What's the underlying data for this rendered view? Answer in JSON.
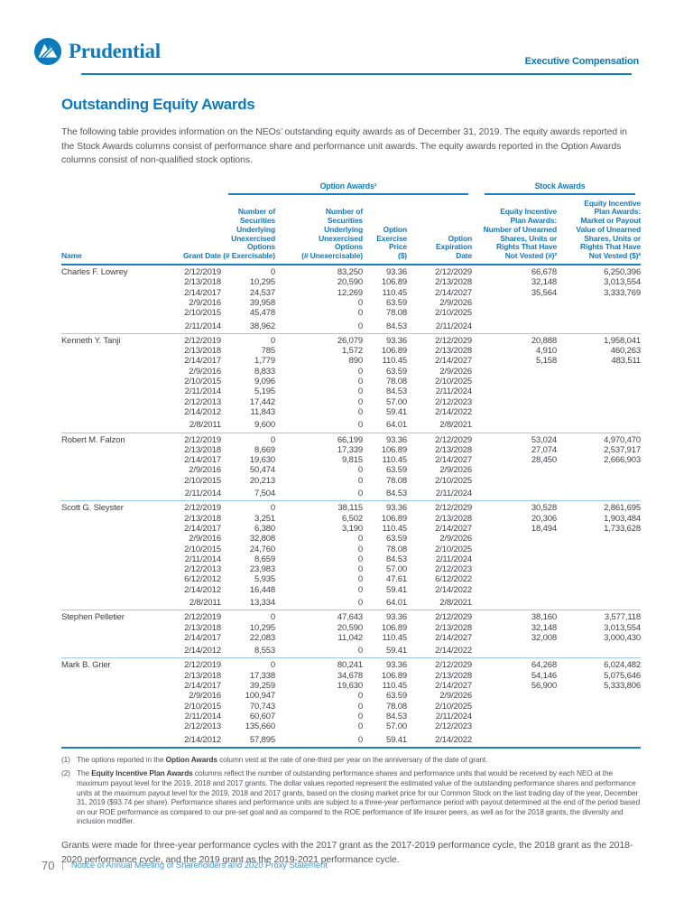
{
  "colors": {
    "brand_blue": "#0b7bbf",
    "rule_blue": "#1a80c4",
    "light_rule_blue": "#9ecbe9",
    "body_text": "#55565a",
    "footer_blue": "#4796cf"
  },
  "header": {
    "brand": "Prudential",
    "logo_icon": "rock-of-gibraltar-icon",
    "section": "Executive Compensation"
  },
  "title": "Outstanding Equity Awards",
  "intro": "The following table provides information on the NEOs’ outstanding equity awards as of December 31, 2019. The equity awards reported in the Stock Awards columns consist of performance share and performance unit awards. The equity awards reported in the Option Awards columns consist of non-qualified stock options.",
  "table": {
    "group_option": "Option Awards¹",
    "group_stock": "Stock Awards",
    "columns": [
      "Name",
      "Grant Date",
      "Number of\nSecurities\nUnderlying\nUnexercised\nOptions\n(# Exercisable)",
      "Number of\nSecurities\nUnderlying\nUnexercised\nOptions\n(# Unexercisable)",
      "Option\nExercise\nPrice\n($)",
      "Option\nExpiration\nDate",
      "Equity Incentive\nPlan Awards:\nNumber of Unearned\nShares, Units or\nRights That Have\nNot Vested (#)²",
      "Equity Incentive\nPlan Awards:\nMarket or Payout\nValue of Unearned\nShares, Units or\nRights That Have\nNot Vested ($)²"
    ],
    "groups": [
      {
        "name": "Charles F. Lowrey",
        "rows": [
          [
            "2/12/2019",
            "0",
            "83,250",
            "93.36",
            "2/12/2029",
            "66,678",
            "6,250,396"
          ],
          [
            "2/13/2018",
            "10,295",
            "20,590",
            "106.89",
            "2/13/2028",
            "32,148",
            "3,013,554"
          ],
          [
            "2/14/2017",
            "24,537",
            "12,269",
            "110.45",
            "2/14/2027",
            "35,564",
            "3,333,769"
          ],
          [
            "2/9/2016",
            "39,958",
            "0",
            "63.59",
            "2/9/2026",
            "",
            ""
          ],
          [
            "2/10/2015",
            "45,478",
            "0",
            "78.08",
            "2/10/2025",
            "",
            ""
          ],
          [
            "2/11/2014",
            "38,962",
            "0",
            "84.53",
            "2/11/2024",
            "",
            ""
          ]
        ]
      },
      {
        "name": "Kenneth Y. Tanji",
        "rows": [
          [
            "2/12/2019",
            "0",
            "26,079",
            "93.36",
            "2/12/2029",
            "20,888",
            "1,958,041"
          ],
          [
            "2/13/2018",
            "785",
            "1,572",
            "106.89",
            "2/13/2028",
            "4,910",
            "460,263"
          ],
          [
            "2/14/2017",
            "1,779",
            "890",
            "110.45",
            "2/14/2027",
            "5,158",
            "483,511"
          ],
          [
            "2/9/2016",
            "8,833",
            "0",
            "63.59",
            "2/9/2026",
            "",
            ""
          ],
          [
            "2/10/2015",
            "9,096",
            "0",
            "78.08",
            "2/10/2025",
            "",
            ""
          ],
          [
            "2/11/2014",
            "5,195",
            "0",
            "84.53",
            "2/11/2024",
            "",
            ""
          ],
          [
            "2/12/2013",
            "17,442",
            "0",
            "57.00",
            "2/12/2023",
            "",
            ""
          ],
          [
            "2/14/2012",
            "11,843",
            "0",
            "59.41",
            "2/14/2022",
            "",
            ""
          ],
          [
            "2/8/2011",
            "9,600",
            "0",
            "64.01",
            "2/8/2021",
            "",
            ""
          ]
        ]
      },
      {
        "name": "Robert M. Falzon",
        "rows": [
          [
            "2/12/2019",
            "0",
            "66,199",
            "93.36",
            "2/12/2029",
            "53,024",
            "4,970,470"
          ],
          [
            "2/13/2018",
            "8,669",
            "17,339",
            "106.89",
            "2/13/2028",
            "27,074",
            "2,537,917"
          ],
          [
            "2/14/2017",
            "19,630",
            "9,815",
            "110.45",
            "2/14/2027",
            "28,450",
            "2,666,903"
          ],
          [
            "2/9/2016",
            "50,474",
            "0",
            "63.59",
            "2/9/2026",
            "",
            ""
          ],
          [
            "2/10/2015",
            "20,213",
            "0",
            "78.08",
            "2/10/2025",
            "",
            ""
          ],
          [
            "2/11/2014",
            "7,504",
            "0",
            "84.53",
            "2/11/2024",
            "",
            ""
          ]
        ]
      },
      {
        "name": "Scott G. Sleyster",
        "rows": [
          [
            "2/12/2019",
            "0",
            "38,115",
            "93.36",
            "2/12/2029",
            "30,528",
            "2,861,695"
          ],
          [
            "2/13/2018",
            "3,251",
            "6,502",
            "106.89",
            "2/13/2028",
            "20,306",
            "1,903,484"
          ],
          [
            "2/14/2017",
            "6,380",
            "3,190",
            "110.45",
            "2/14/2027",
            "18,494",
            "1,733,628"
          ],
          [
            "2/9/2016",
            "32,808",
            "0",
            "63.59",
            "2/9/2026",
            "",
            ""
          ],
          [
            "2/10/2015",
            "24,760",
            "0",
            "78.08",
            "2/10/2025",
            "",
            ""
          ],
          [
            "2/11/2014",
            "8,659",
            "0",
            "84.53",
            "2/11/2024",
            "",
            ""
          ],
          [
            "2/12/2013",
            "23,983",
            "0",
            "57.00",
            "2/12/2023",
            "",
            ""
          ],
          [
            "6/12/2012",
            "5,935",
            "0",
            "47.61",
            "6/12/2022",
            "",
            ""
          ],
          [
            "2/14/2012",
            "16,448",
            "0",
            "59.41",
            "2/14/2022",
            "",
            ""
          ],
          [
            "2/8/2011",
            "13,334",
            "0",
            "64.01",
            "2/8/2021",
            "",
            ""
          ]
        ]
      },
      {
        "name": "Stephen Pelletier",
        "rows": [
          [
            "2/12/2019",
            "0",
            "47,643",
            "93.36",
            "2/12/2029",
            "38,160",
            "3,577,118"
          ],
          [
            "2/13/2018",
            "10,295",
            "20,590",
            "106.89",
            "2/13/2028",
            "32,148",
            "3,013,554"
          ],
          [
            "2/14/2017",
            "22,083",
            "11,042",
            "110.45",
            "2/14/2027",
            "32,008",
            "3,000,430"
          ],
          [
            "2/14/2012",
            "8,553",
            "0",
            "59.41",
            "2/14/2022",
            "",
            ""
          ]
        ]
      },
      {
        "name": "Mark B. Grier",
        "rows": [
          [
            "2/12/2019",
            "0",
            "80,241",
            "93.36",
            "2/12/2029",
            "64,268",
            "6,024,482"
          ],
          [
            "2/13/2018",
            "17,338",
            "34,678",
            "106.89",
            "2/13/2028",
            "54,146",
            "5,075,646"
          ],
          [
            "2/14/2017",
            "39,259",
            "19,630",
            "110.45",
            "2/14/2027",
            "56,900",
            "5,333,806"
          ],
          [
            "2/9/2016",
            "100,947",
            "0",
            "63.59",
            "2/9/2026",
            "",
            ""
          ],
          [
            "2/10/2015",
            "70,743",
            "0",
            "78.08",
            "2/10/2025",
            "",
            ""
          ],
          [
            "2/11/2014",
            "60,607",
            "0",
            "84.53",
            "2/11/2024",
            "",
            ""
          ],
          [
            "2/12/2013",
            "135,660",
            "0",
            "57.00",
            "2/12/2023",
            "",
            ""
          ],
          [
            "2/14/2012",
            "57,895",
            "0",
            "59.41",
            "2/14/2022",
            "",
            ""
          ]
        ]
      }
    ]
  },
  "footnotes": [
    {
      "num": "(1)",
      "pre": "The options reported in the ",
      "bold": "Option Awards",
      "post": " column vest at the rate of one-third per year on the anniversary of the date of grant."
    },
    {
      "num": "(2)",
      "pre": "The ",
      "bold": "Equity Incentive Plan Awards",
      "post": " columns reflect the number of outstanding performance shares and performance units that would be received by each NEO at the maximum payout level for the 2019, 2018 and 2017 grants. The dollar values reported represent the estimated value of the outstanding performance shares and performance units at the maximum payout level for the 2019, 2018 and 2017 grants, based on the closing market price for our Common Stock on the last trading day of the year, December 31, 2019 ($93.74 per share). Performance shares and performance units are subject to a three-year performance period with payout determined at the end of the period based on our ROE performance as compared to our pre-set goal and as compared to the ROE performance of life insurer peers, as well as for the 2018 grants, the diversity and inclusion modifier."
    }
  ],
  "closing": "Grants were made for three-year performance cycles with the 2017 grant as the 2017-2019 performance cycle, the 2018 grant as the 2018-2020 performance cycle, and the 2019 grant as the 2019-2021 performance cycle.",
  "footer": {
    "page_number": "70",
    "divider": "|",
    "text": "Notice of Annual Meeting of Shareholders and 2020 Proxy Statement"
  }
}
